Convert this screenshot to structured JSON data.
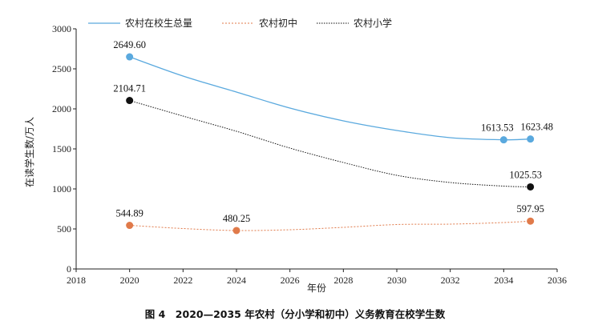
{
  "chart_data": {
    "type": "line",
    "caption": "图 4　2020—2035 年农村（分小学和初中）义务教育在校学生数",
    "ylabel": "在读学生数/万人",
    "xlabel": "年份",
    "xlim": [
      2018,
      2036
    ],
    "ylim": [
      0,
      3000
    ],
    "x_ticks": [
      2018,
      2020,
      2022,
      2024,
      2026,
      2028,
      2030,
      2032,
      2034,
      2036
    ],
    "y_ticks": [
      0,
      500,
      1000,
      1500,
      2000,
      2500,
      3000
    ],
    "legend_position": "top",
    "series": [
      {
        "name": "农村在校生总量",
        "color": "#5aa9de",
        "dash": "none",
        "x": [
          2020,
          2022,
          2024,
          2026,
          2028,
          2030,
          2032,
          2034,
          2035
        ],
        "values": [
          2649.6,
          2410,
          2210,
          2010,
          1850,
          1730,
          1640,
          1613.53,
          1623.48
        ],
        "labeled": [
          {
            "x": 2020,
            "y": 2649.6,
            "text": "2649.60"
          },
          {
            "x": 2034,
            "y": 1613.53,
            "text": "1613.53"
          },
          {
            "x": 2035,
            "y": 1623.48,
            "text": "1623.48"
          }
        ]
      },
      {
        "name": "农村初中",
        "color": "#e07a4a",
        "dash": "2,2",
        "x": [
          2020,
          2022,
          2024,
          2026,
          2028,
          2030,
          2032,
          2034,
          2035
        ],
        "values": [
          544.89,
          505,
          480.25,
          490,
          520,
          555,
          560,
          580,
          597.95
        ],
        "labeled": [
          {
            "x": 2020,
            "y": 544.89,
            "text": "544.89"
          },
          {
            "x": 2024,
            "y": 480.25,
            "text": "480.25"
          },
          {
            "x": 2035,
            "y": 597.95,
            "text": "597.95"
          }
        ]
      },
      {
        "name": "农村小学",
        "color": "#111111",
        "dash": "1.5,1.5",
        "x": [
          2020,
          2022,
          2024,
          2026,
          2028,
          2030,
          2032,
          2034,
          2035
        ],
        "values": [
          2104.71,
          1910,
          1720,
          1510,
          1330,
          1170,
          1080,
          1035,
          1025.53
        ],
        "labeled": [
          {
            "x": 2020,
            "y": 2104.71,
            "text": "2104.71"
          },
          {
            "x": 2035,
            "y": 1025.53,
            "text": "1025.53"
          }
        ]
      }
    ]
  }
}
